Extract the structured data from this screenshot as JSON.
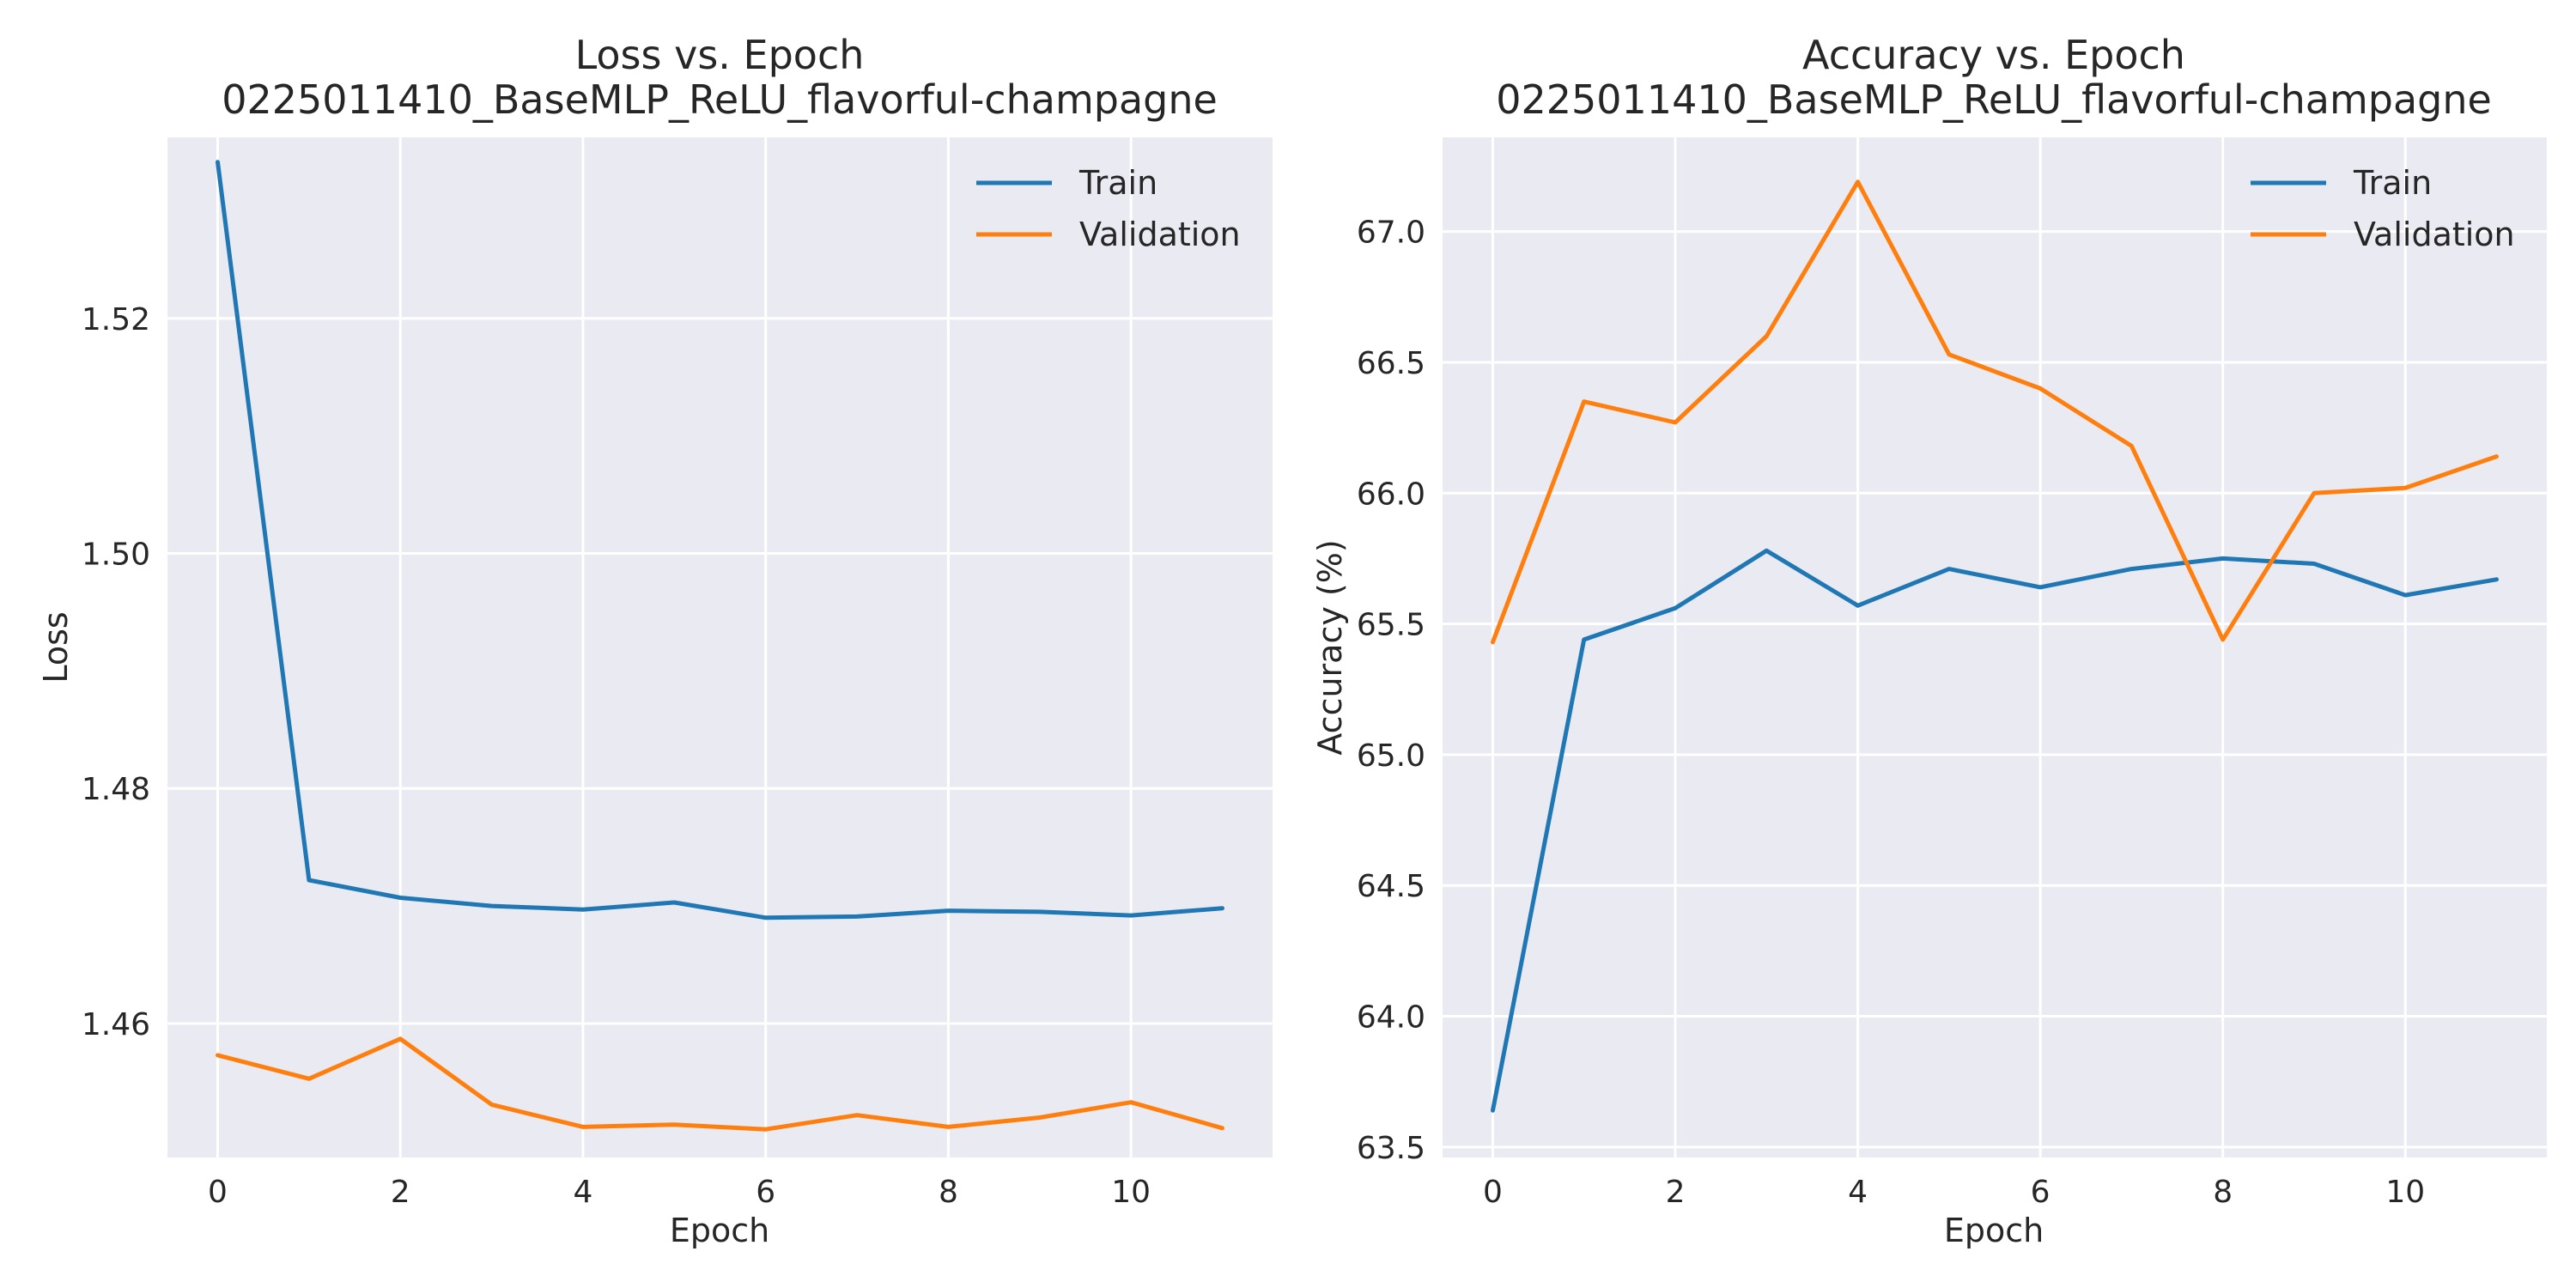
{
  "chart_data": [
    {
      "type": "line",
      "title": "Loss vs. Epoch",
      "subtitle": "0225011410_BaseMLP_ReLU_flavorful-champagne",
      "xlabel": "Epoch",
      "ylabel": "Loss",
      "x": [
        0,
        1,
        2,
        3,
        4,
        5,
        6,
        7,
        8,
        9,
        10,
        11
      ],
      "xlim": [
        -0.55,
        11.55
      ],
      "ylim": [
        1.4486,
        1.5354
      ],
      "xticks": [
        0,
        2,
        4,
        6,
        8,
        10
      ],
      "yticks": [
        1.46,
        1.48,
        1.5,
        1.52
      ],
      "xtick_labels": [
        "0",
        "2",
        "4",
        "6",
        "8",
        "10"
      ],
      "ytick_labels": [
        "1.46",
        "1.48",
        "1.50",
        "1.52"
      ],
      "grid": true,
      "legend": "top-right",
      "series": [
        {
          "name": "Train",
          "color": "#1f77b4",
          "values": [
            1.5333,
            1.4722,
            1.4707,
            1.47,
            1.4697,
            1.4703,
            1.469,
            1.4691,
            1.4696,
            1.4695,
            1.4692,
            1.4698
          ]
        },
        {
          "name": "Validation",
          "color": "#ff7f0e",
          "values": [
            1.4573,
            1.4553,
            1.4587,
            1.4531,
            1.4512,
            1.4514,
            1.451,
            1.4522,
            1.4512,
            1.452,
            1.4533,
            1.4511
          ]
        }
      ]
    },
    {
      "type": "line",
      "title": "Accuracy vs. Epoch",
      "subtitle": "0225011410_BaseMLP_ReLU_flavorful-champagne",
      "xlabel": "Epoch",
      "ylabel": "Accuracy (%)",
      "x": [
        0,
        1,
        2,
        3,
        4,
        5,
        6,
        7,
        8,
        9,
        10,
        11
      ],
      "xlim": [
        -0.55,
        11.55
      ],
      "ylim": [
        63.46,
        67.36
      ],
      "xticks": [
        0,
        2,
        4,
        6,
        8,
        10
      ],
      "yticks": [
        63.5,
        64.0,
        64.5,
        65.0,
        65.5,
        66.0,
        66.5,
        67.0
      ],
      "xtick_labels": [
        "0",
        "2",
        "4",
        "6",
        "8",
        "10"
      ],
      "ytick_labels": [
        "63.5",
        "64.0",
        "64.5",
        "65.0",
        "65.5",
        "66.0",
        "66.5",
        "67.0"
      ],
      "grid": true,
      "legend": "top-right",
      "series": [
        {
          "name": "Train",
          "color": "#1f77b4",
          "values": [
            63.64,
            65.44,
            65.56,
            65.78,
            65.57,
            65.71,
            65.64,
            65.71,
            65.75,
            65.73,
            65.61,
            65.67
          ]
        },
        {
          "name": "Validation",
          "color": "#ff7f0e",
          "values": [
            65.43,
            66.35,
            66.27,
            66.6,
            67.19,
            66.53,
            66.4,
            66.18,
            65.44,
            66.0,
            66.02,
            66.14
          ]
        }
      ]
    }
  ]
}
